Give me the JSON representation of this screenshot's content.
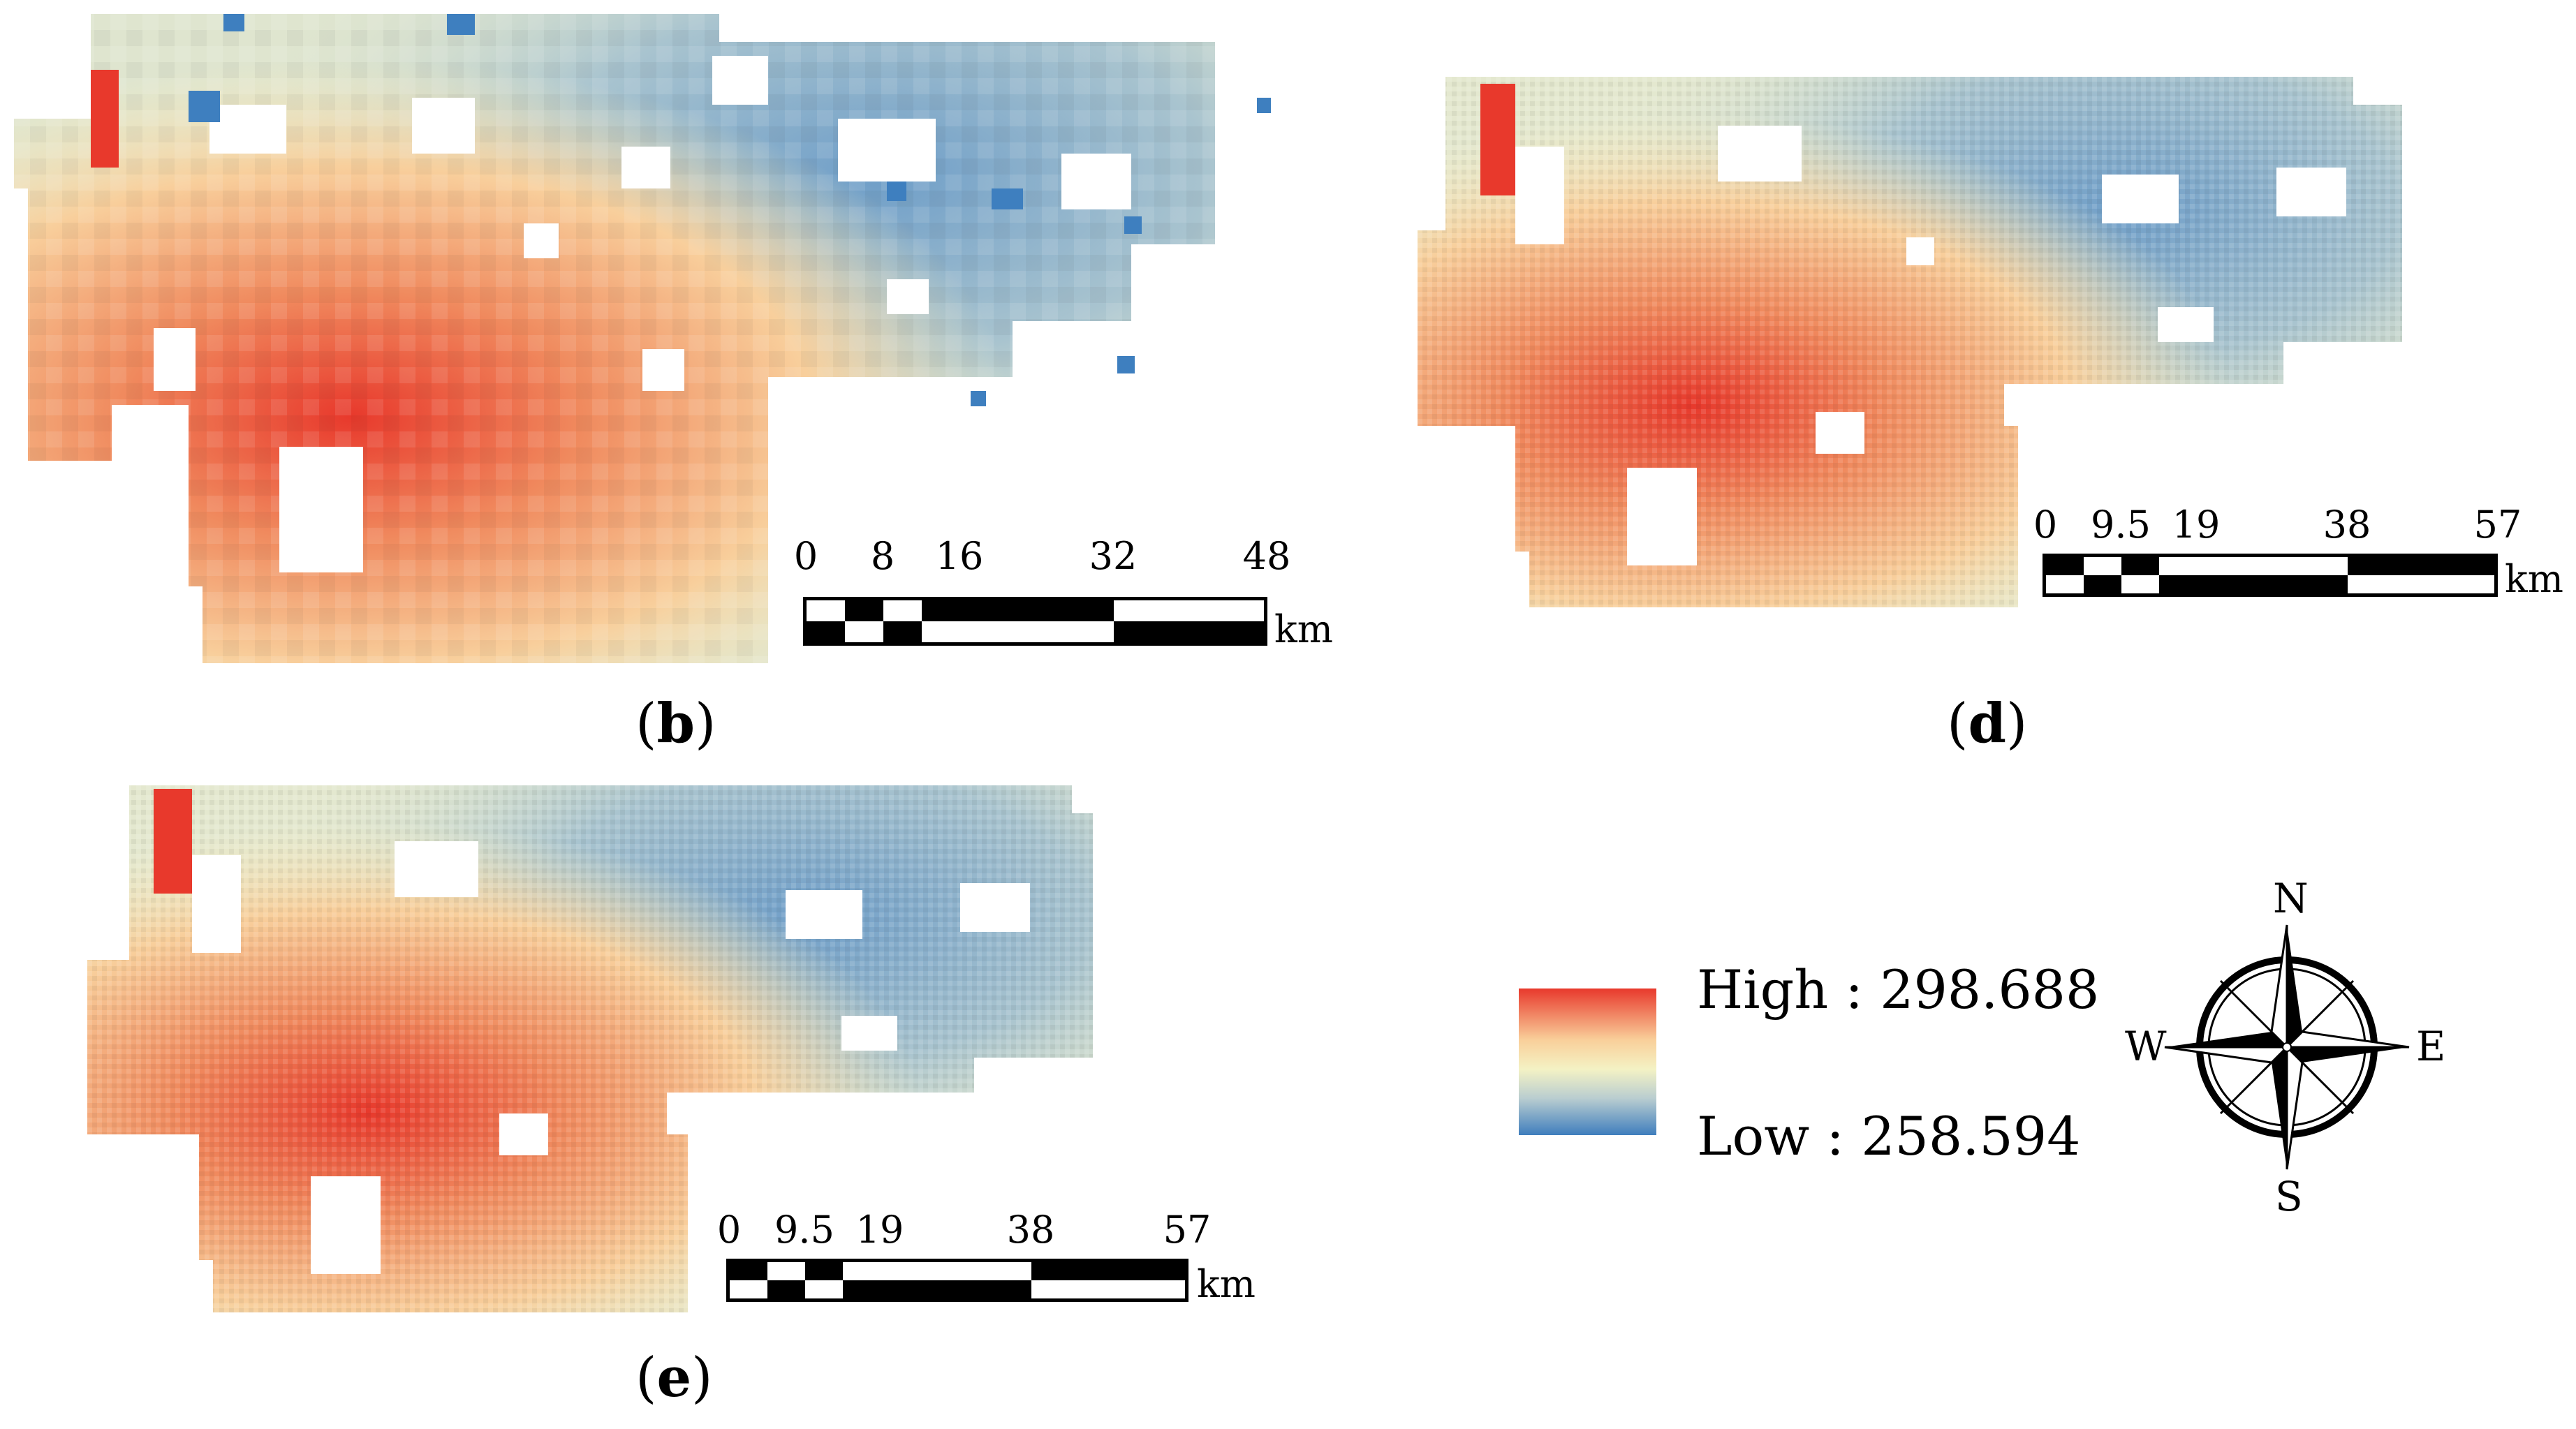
{
  "panels": [
    {
      "id": "b",
      "label": "b",
      "scale_ticks": [
        "0",
        "8",
        "16",
        "32",
        "48"
      ],
      "scale_unit": "km"
    },
    {
      "id": "d",
      "label": "d",
      "scale_ticks": [
        "0",
        "9.5",
        "19",
        "38",
        "57"
      ],
      "scale_unit": "km"
    },
    {
      "id": "e",
      "label": "e",
      "scale_ticks": [
        "0",
        "9.5",
        "19",
        "38",
        "57"
      ],
      "scale_unit": "km"
    }
  ],
  "legend": {
    "high_label": "High : 298.688",
    "low_label": "Low : 258.594",
    "high_value": 298.688,
    "low_value": 258.594,
    "colors": {
      "high": "#e8392c",
      "mid_high": "#f9cf9a",
      "mid": "#f4f2c4",
      "low": "#3f7ebd"
    }
  },
  "compass": {
    "n": "N",
    "s": "S",
    "e": "E",
    "w": "W"
  }
}
